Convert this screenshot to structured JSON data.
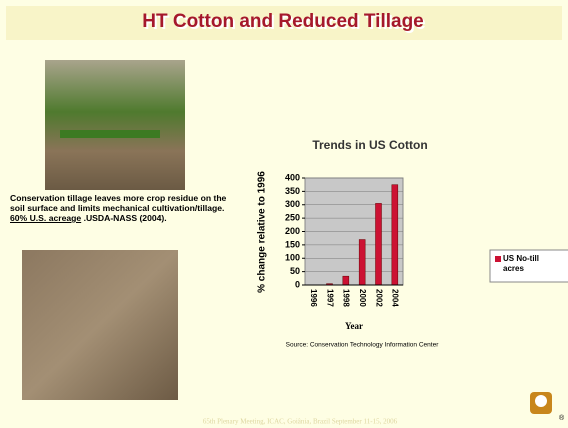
{
  "slide": {
    "title": "HT Cotton and Reduced Tillage",
    "caption": {
      "text": "Conservation tillage leaves more crop residue on the soil surface and limits mechanical cultivation/tillage.",
      "emphasis": "60% U.S. acreage",
      "source": ".USDA-NASS (2004)."
    },
    "footer": "65th Plenary Meeting, ICAC, Goiânia, Brazil September 11-15, 2006",
    "mark": "®"
  },
  "chart_data": {
    "type": "bar",
    "title": "Trends in US Cotton",
    "y_label": "% change relative to 1996",
    "x_label": "Year",
    "source": "Source: Conservation Technology Information Center",
    "categories": [
      "1996",
      "1997",
      "1998",
      "2000",
      "2002",
      "2004"
    ],
    "series": [
      {
        "name": "US No-till acres",
        "color": "#cc1133",
        "values": [
          0,
          5,
          33,
          170,
          305,
          375
        ]
      }
    ],
    "ylim": [
      0,
      400
    ],
    "yticks": [
      0,
      50,
      100,
      150,
      200,
      250,
      300,
      350,
      400
    ],
    "grid": true,
    "legend": "right"
  }
}
